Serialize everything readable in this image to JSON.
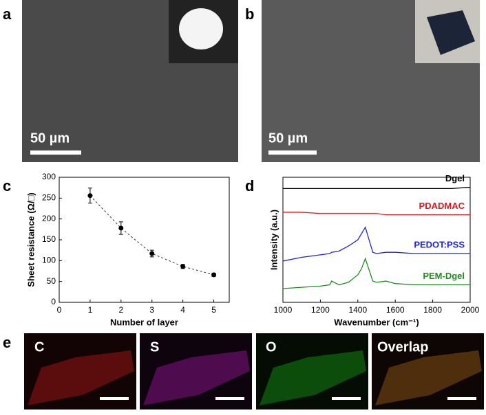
{
  "panel_labels": [
    "a",
    "b",
    "c",
    "d",
    "e"
  ],
  "sem_scale_bars": [
    "50 µm",
    "50 µm"
  ],
  "map_labels": [
    "C",
    "S",
    "O",
    "Overlap"
  ],
  "chart_data": [
    {
      "type": "errorline",
      "xlabel": "Number of layer",
      "ylabel": "Sheet resistance (Ω/□)",
      "x": [
        1,
        2,
        3,
        4,
        5
      ],
      "values": [
        256,
        178,
        117,
        86,
        66
      ],
      "errors": [
        18,
        15,
        8,
        5,
        4
      ],
      "color": "#000000",
      "xlim": [
        0,
        5.5
      ],
      "xticks": [
        0,
        1,
        2,
        3,
        4,
        5
      ],
      "ylim": [
        0,
        300
      ],
      "yticks": [
        0,
        50,
        100,
        150,
        200,
        250,
        300
      ]
    },
    {
      "type": "line",
      "xlabel": "Wavenumber (cm⁻¹)",
      "ylabel": "Intensity (a.u.)",
      "x": [
        1000,
        1100,
        1200,
        1250,
        1260,
        1300,
        1350,
        1400,
        1420,
        1440,
        1460,
        1480,
        1500,
        1550,
        1600,
        1700,
        1800,
        1900,
        2000
      ],
      "xlim": [
        1000,
        2000
      ],
      "xticks": [
        1000,
        1200,
        1400,
        1600,
        1800,
        2000
      ],
      "ylim": [
        0,
        100
      ],
      "series": [
        {
          "name": "Dgel",
          "color": "#000000",
          "values": [
            91,
            91,
            91,
            91,
            91,
            91,
            91,
            91,
            91,
            91,
            91,
            91,
            91,
            91,
            91,
            91,
            91,
            91,
            92
          ]
        },
        {
          "name": "PDADMAC",
          "color": "#e8141c",
          "values": [
            72,
            72,
            71,
            71,
            71,
            71,
            71,
            71,
            71,
            71,
            71,
            71,
            71,
            70,
            70,
            70,
            70,
            70,
            70
          ]
        },
        {
          "name": "PEDOT:PSS",
          "color": "#1a22e8",
          "values": [
            33,
            36,
            38,
            39,
            40,
            41,
            45,
            50,
            55,
            60,
            50,
            40,
            39,
            40,
            40,
            39,
            39,
            39,
            39
          ]
        },
        {
          "name": "PEM-Dgel",
          "color": "#1e8c1e",
          "values": [
            11,
            12,
            13,
            14,
            17,
            14,
            16,
            22,
            27,
            35,
            26,
            17,
            16,
            17,
            15,
            14,
            14,
            14,
            14
          ]
        }
      ]
    }
  ]
}
